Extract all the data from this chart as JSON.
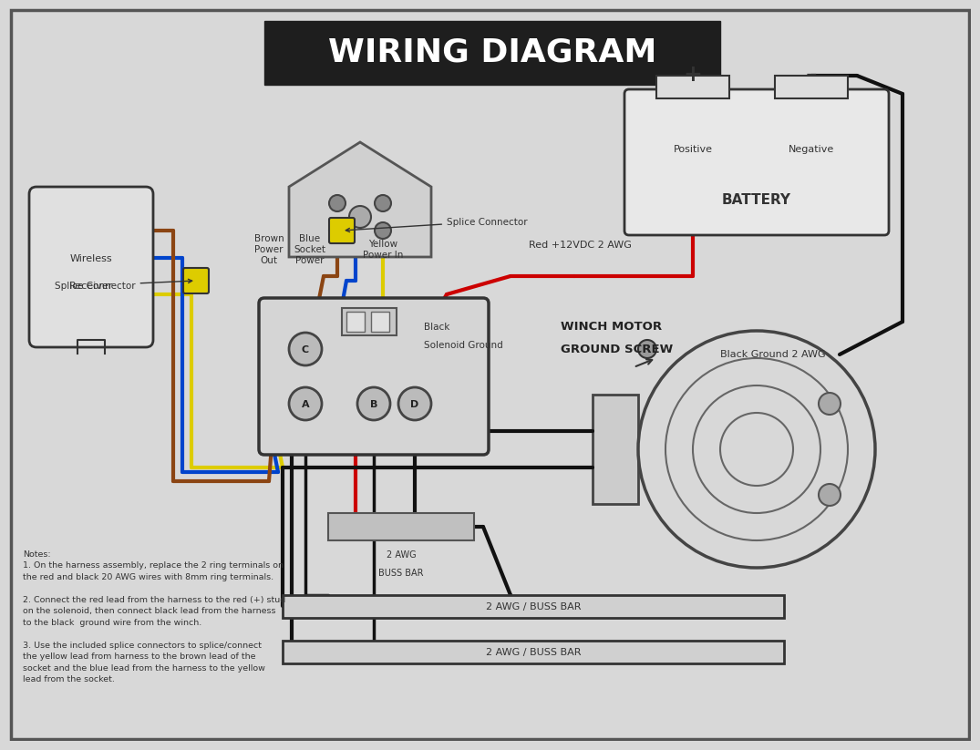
{
  "title": "WIRING DIAGRAM",
  "bg_color": "#d8d8d8",
  "title_bg": "#1e1e1e",
  "title_color": "#ffffff",
  "notes": [
    "Notes:",
    "1. On the harness assembly, replace the 2 ring terminals on",
    "the red and black 20 AWG wires with 8mm ring terminals.",
    "",
    "2. Connect the red lead from the harness to the red (+) stud",
    "on the solenoid, then connect black lead from the harness",
    "to the black  ground wire from the winch.",
    "",
    "3. Use the included splice connectors to splice/connect",
    "the yellow lead from harness to the brown lead of the",
    "socket and the blue lead from the harness to the yellow",
    "lead from the socket."
  ],
  "wire_red": "#cc0000",
  "wire_black": "#111111",
  "wire_yellow": "#ddcc00",
  "wire_blue": "#0044cc",
  "wire_brown": "#8B4513",
  "component_color": "#cccccc",
  "component_border": "#555555"
}
